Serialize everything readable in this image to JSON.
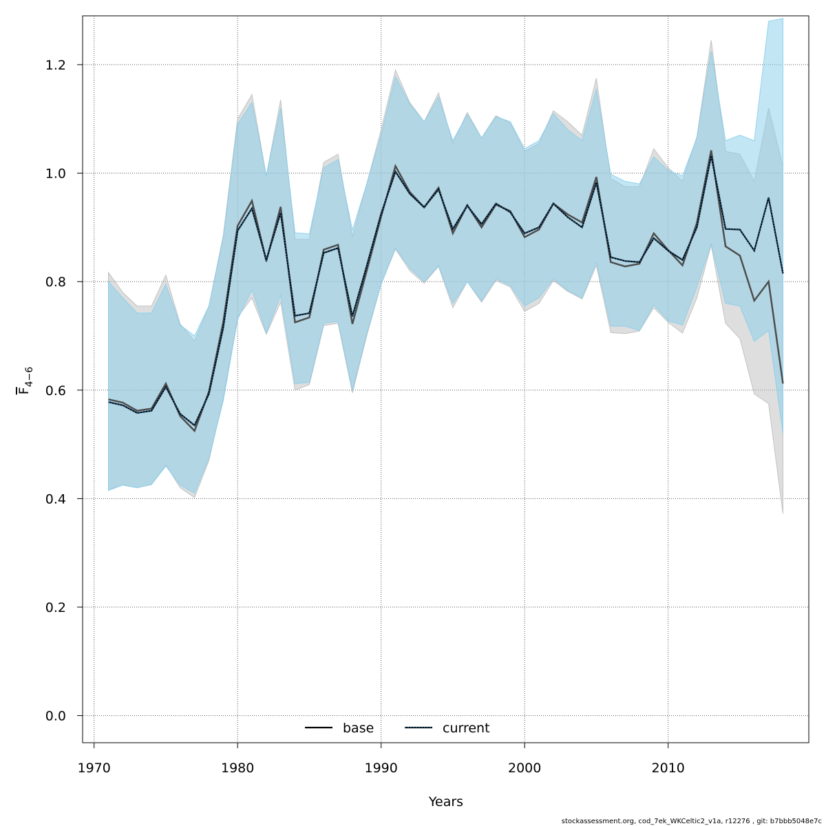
{
  "chart_data": {
    "type": "line",
    "xlabel": "Years",
    "ylabel_main": "F",
    "ylabel_sub": "4−6",
    "xlim": [
      1969.2,
      2019.8
    ],
    "ylim": [
      -0.05,
      1.29
    ],
    "xticks": [
      1970,
      1980,
      1990,
      2000,
      2010
    ],
    "yticks": [
      0.0,
      0.2,
      0.4,
      0.6,
      0.8,
      1.0,
      1.2
    ],
    "ytick_labels": [
      "0.0",
      "0.2",
      "0.4",
      "0.6",
      "0.8",
      "1.0",
      "1.2"
    ],
    "grid": true,
    "legend_position": "bottom-center",
    "x": [
      1971,
      1972,
      1973,
      1974,
      1975,
      1976,
      1977,
      1978,
      1979,
      1980,
      1981,
      1982,
      1983,
      1984,
      1985,
      1986,
      1987,
      1988,
      1989,
      1990,
      1991,
      1992,
      1993,
      1994,
      1995,
      1996,
      1997,
      1998,
      1999,
      2000,
      2001,
      2002,
      2003,
      2004,
      2005,
      2006,
      2007,
      2008,
      2009,
      2010,
      2011,
      2012,
      2013,
      2014,
      2015,
      2016,
      2017,
      2018
    ],
    "series": [
      {
        "name": "base",
        "line_color": "#4d4d4d",
        "band_color": "#bebebe",
        "line_style": "solid",
        "values": [
          0.583,
          0.577,
          0.562,
          0.566,
          0.612,
          0.552,
          0.525,
          0.597,
          0.725,
          0.903,
          0.949,
          0.838,
          0.938,
          0.725,
          0.734,
          0.859,
          0.868,
          0.722,
          0.82,
          0.92,
          1.013,
          0.965,
          0.937,
          0.973,
          0.889,
          0.941,
          0.9,
          0.942,
          0.93,
          0.882,
          0.896,
          0.944,
          0.924,
          0.909,
          0.993,
          0.836,
          0.828,
          0.833,
          0.889,
          0.858,
          0.83,
          0.908,
          1.042,
          0.865,
          0.848,
          0.765,
          0.8,
          0.612
        ],
        "lower": [
          0.417,
          0.425,
          0.42,
          0.426,
          0.462,
          0.42,
          0.402,
          0.47,
          0.585,
          0.735,
          0.77,
          0.703,
          0.762,
          0.6,
          0.61,
          0.719,
          0.723,
          0.595,
          0.7,
          0.795,
          0.86,
          0.82,
          0.797,
          0.828,
          0.752,
          0.8,
          0.762,
          0.802,
          0.79,
          0.745,
          0.76,
          0.802,
          0.782,
          0.768,
          0.83,
          0.706,
          0.704,
          0.709,
          0.752,
          0.725,
          0.705,
          0.77,
          0.867,
          0.723,
          0.695,
          0.593,
          0.575,
          0.372
        ],
        "upper": [
          0.817,
          0.78,
          0.755,
          0.755,
          0.812,
          0.722,
          0.69,
          0.755,
          0.885,
          1.1,
          1.145,
          0.995,
          1.135,
          0.878,
          0.878,
          1.02,
          1.035,
          0.882,
          0.98,
          1.08,
          1.19,
          1.13,
          1.095,
          1.148,
          1.055,
          1.112,
          1.065,
          1.106,
          1.092,
          1.04,
          1.055,
          1.115,
          1.095,
          1.07,
          1.175,
          0.99,
          0.975,
          0.975,
          1.045,
          1.01,
          0.985,
          1.067,
          1.245,
          1.04,
          1.035,
          0.985,
          1.12,
          1.012
        ]
      },
      {
        "name": "current",
        "line_color": "#1a5a8a",
        "band_color": "#87ceeb",
        "line_style": "dotted",
        "values": [
          0.578,
          0.572,
          0.558,
          0.562,
          0.606,
          0.556,
          0.535,
          0.593,
          0.715,
          0.894,
          0.935,
          0.84,
          0.927,
          0.737,
          0.742,
          0.853,
          0.862,
          0.736,
          0.829,
          0.925,
          1.003,
          0.962,
          0.937,
          0.97,
          0.897,
          0.94,
          0.906,
          0.944,
          0.928,
          0.889,
          0.9,
          0.944,
          0.919,
          0.9,
          0.983,
          0.845,
          0.838,
          0.836,
          0.88,
          0.857,
          0.84,
          0.9,
          1.032,
          0.897,
          0.896,
          0.857,
          0.955,
          0.815
        ],
        "lower": [
          0.415,
          0.425,
          0.42,
          0.426,
          0.46,
          0.425,
          0.41,
          0.475,
          0.58,
          0.73,
          0.785,
          0.705,
          0.775,
          0.612,
          0.614,
          0.723,
          0.727,
          0.6,
          0.705,
          0.795,
          0.862,
          0.825,
          0.8,
          0.83,
          0.76,
          0.8,
          0.765,
          0.805,
          0.793,
          0.755,
          0.77,
          0.805,
          0.784,
          0.77,
          0.836,
          0.718,
          0.718,
          0.71,
          0.757,
          0.728,
          0.72,
          0.79,
          0.87,
          0.76,
          0.755,
          0.69,
          0.71,
          0.52
        ],
        "upper": [
          0.8,
          0.77,
          0.742,
          0.742,
          0.795,
          0.72,
          0.7,
          0.755,
          0.88,
          1.09,
          1.13,
          0.995,
          1.12,
          0.89,
          0.888,
          1.01,
          1.025,
          0.895,
          0.98,
          1.07,
          1.178,
          1.127,
          1.095,
          1.14,
          1.06,
          1.108,
          1.065,
          1.104,
          1.095,
          1.045,
          1.06,
          1.11,
          1.08,
          1.06,
          1.155,
          0.998,
          0.985,
          0.98,
          1.03,
          1.005,
          0.995,
          1.065,
          1.225,
          1.06,
          1.07,
          1.06,
          1.28,
          1.285
        ]
      }
    ]
  },
  "footer_text": "stockassessment.org, cod_7ek_WKCeltic2_v1a, r12276 , git: b7bbb5048e7c"
}
